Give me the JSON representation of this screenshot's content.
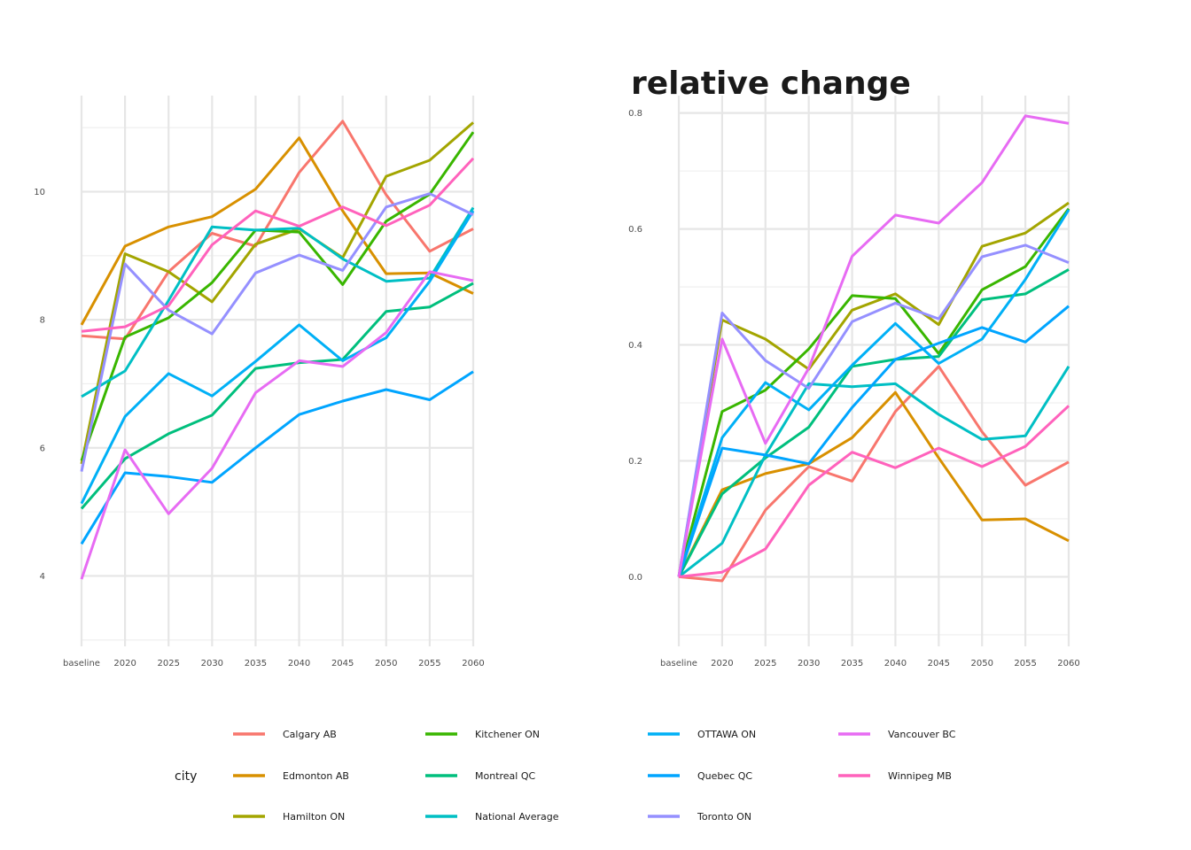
{
  "chart_data": [
    {
      "type": "line",
      "title": "",
      "xlabel": "",
      "ylabel": "",
      "categories": [
        "baseline",
        "2020",
        "2025",
        "2030",
        "2035",
        "2040",
        "2045",
        "2050",
        "2055",
        "2060"
      ],
      "ylim": [
        2.9,
        11.5
      ],
      "yticks": [
        4,
        6,
        8,
        10
      ],
      "ytick_labels": [
        "4",
        "6",
        "8",
        "10"
      ],
      "grid": true,
      "legend": "bottom",
      "series": [
        {
          "name": "Calgary AB",
          "color": "#F8766D",
          "values": [
            7.75,
            7.7,
            8.75,
            9.35,
            9.15,
            10.3,
            11.1,
            9.95,
            9.07,
            9.42
          ]
        },
        {
          "name": "Edmonton AB",
          "color": "#D89000",
          "values": [
            7.92,
            9.15,
            9.45,
            9.61,
            10.04,
            10.84,
            9.7,
            8.72,
            8.73,
            8.41
          ]
        },
        {
          "name": "Hamilton ON",
          "color": "#A3A500",
          "values": [
            5.75,
            9.03,
            8.75,
            8.28,
            9.18,
            9.42,
            8.97,
            10.24,
            10.49,
            11.08
          ]
        },
        {
          "name": "Kitchener ON",
          "color": "#39B600",
          "values": [
            5.8,
            7.73,
            8.03,
            8.58,
            9.4,
            9.37,
            8.55,
            9.54,
            9.96,
            10.93
          ]
        },
        {
          "name": "Montreal QC",
          "color": "#00BF7D",
          "values": [
            5.05,
            5.83,
            6.22,
            6.51,
            7.24,
            7.33,
            7.38,
            8.13,
            8.2,
            8.57
          ]
        },
        {
          "name": "National Average",
          "color": "#00BFC4",
          "values": [
            6.8,
            7.2,
            8.3,
            9.45,
            9.4,
            9.43,
            8.95,
            8.6,
            8.65,
            9.75
          ]
        },
        {
          "name": "OTTAWA ON",
          "color": "#00B0F6",
          "values": [
            5.13,
            6.49,
            7.16,
            6.81,
            7.35,
            7.92,
            7.36,
            7.72,
            8.6,
            9.7
          ]
        },
        {
          "name": "Quebec QC",
          "color": "#00A5FF",
          "values": [
            4.5,
            5.61,
            5.55,
            5.46,
            6.0,
            6.52,
            6.73,
            6.91,
            6.75,
            7.19
          ]
        },
        {
          "name": "Toronto ON",
          "color": "#9590FF",
          "values": [
            5.63,
            8.87,
            8.15,
            7.78,
            8.73,
            9.01,
            8.77,
            9.76,
            9.97,
            9.64
          ]
        },
        {
          "name": "Vancouver BC",
          "color": "#E76BF3",
          "values": [
            3.95,
            5.97,
            4.97,
            5.68,
            6.86,
            7.36,
            7.27,
            7.8,
            8.75,
            8.61
          ]
        },
        {
          "name": "Winnipeg MB",
          "color": "#FF62BC",
          "values": [
            7.82,
            7.89,
            8.22,
            9.17,
            9.7,
            9.46,
            9.76,
            9.47,
            9.79,
            10.52
          ]
        }
      ]
    },
    {
      "type": "line",
      "title": "relative change",
      "xlabel": "",
      "ylabel": "",
      "categories": [
        "baseline",
        "2020",
        "2025",
        "2030",
        "2035",
        "2040",
        "2045",
        "2050",
        "2055",
        "2060"
      ],
      "ylim": [
        -0.12,
        0.83
      ],
      "yticks": [
        0.0,
        0.2,
        0.4,
        0.6,
        0.8
      ],
      "ytick_labels": [
        "0.0",
        "0.2",
        "0.4",
        "0.6",
        "0.8"
      ],
      "grid": true,
      "legend": "bottom",
      "series": [
        {
          "name": "Calgary AB",
          "color": "#F8766D",
          "values": [
            0.0,
            -0.007,
            0.115,
            0.19,
            0.165,
            0.285,
            0.363,
            0.25,
            0.158,
            0.198
          ]
        },
        {
          "name": "Edmonton AB",
          "color": "#D89000",
          "values": [
            0.0,
            0.15,
            0.178,
            0.195,
            0.24,
            0.318,
            0.205,
            0.098,
            0.1,
            0.062
          ]
        },
        {
          "name": "Hamilton ON",
          "color": "#A3A500",
          "values": [
            0.0,
            0.443,
            0.41,
            0.358,
            0.46,
            0.488,
            0.435,
            0.57,
            0.593,
            0.645
          ]
        },
        {
          "name": "Kitchener ON",
          "color": "#39B600",
          "values": [
            0.0,
            0.285,
            0.322,
            0.393,
            0.485,
            0.48,
            0.385,
            0.495,
            0.535,
            0.635
          ]
        },
        {
          "name": "Montreal QC",
          "color": "#00BF7D",
          "values": [
            0.0,
            0.143,
            0.205,
            0.258,
            0.363,
            0.375,
            0.38,
            0.478,
            0.488,
            0.53
          ]
        },
        {
          "name": "National Average",
          "color": "#00BFC4",
          "values": [
            0.0,
            0.058,
            0.21,
            0.333,
            0.328,
            0.333,
            0.28,
            0.237,
            0.243,
            0.363
          ]
        },
        {
          "name": "OTTAWA ON",
          "color": "#00B0F6",
          "values": [
            0.0,
            0.24,
            0.335,
            0.288,
            0.365,
            0.437,
            0.368,
            0.41,
            0.513,
            0.633
          ]
        },
        {
          "name": "Quebec QC",
          "color": "#00A5FF",
          "values": [
            0.0,
            0.222,
            0.21,
            0.195,
            0.292,
            0.375,
            0.403,
            0.43,
            0.405,
            0.467
          ]
        },
        {
          "name": "Toronto ON",
          "color": "#9590FF",
          "values": [
            0.0,
            0.455,
            0.373,
            0.325,
            0.44,
            0.472,
            0.445,
            0.552,
            0.572,
            0.542
          ]
        },
        {
          "name": "Vancouver BC",
          "color": "#E76BF3",
          "values": [
            0.0,
            0.41,
            0.23,
            0.36,
            0.553,
            0.624,
            0.61,
            0.68,
            0.795,
            0.782
          ]
        },
        {
          "name": "Winnipeg MB",
          "color": "#FF62BC",
          "values": [
            0.0,
            0.008,
            0.048,
            0.158,
            0.215,
            0.188,
            0.222,
            0.19,
            0.225,
            0.295
          ]
        }
      ]
    }
  ],
  "legend": {
    "title": "city",
    "items": [
      {
        "label": "Calgary AB",
        "color": "#F8766D"
      },
      {
        "label": "Edmonton AB",
        "color": "#D89000"
      },
      {
        "label": "Hamilton ON",
        "color": "#A3A500"
      },
      {
        "label": "Kitchener ON",
        "color": "#39B600"
      },
      {
        "label": "Montreal QC",
        "color": "#00BF7D"
      },
      {
        "label": "National Average",
        "color": "#00BFC4"
      },
      {
        "label": "OTTAWA ON",
        "color": "#00B0F6"
      },
      {
        "label": "Quebec QC",
        "color": "#00A5FF"
      },
      {
        "label": "Toronto ON",
        "color": "#9590FF"
      },
      {
        "label": "Vancouver BC",
        "color": "#E76BF3"
      },
      {
        "label": "Winnipeg MB",
        "color": "#FF62BC"
      }
    ]
  }
}
